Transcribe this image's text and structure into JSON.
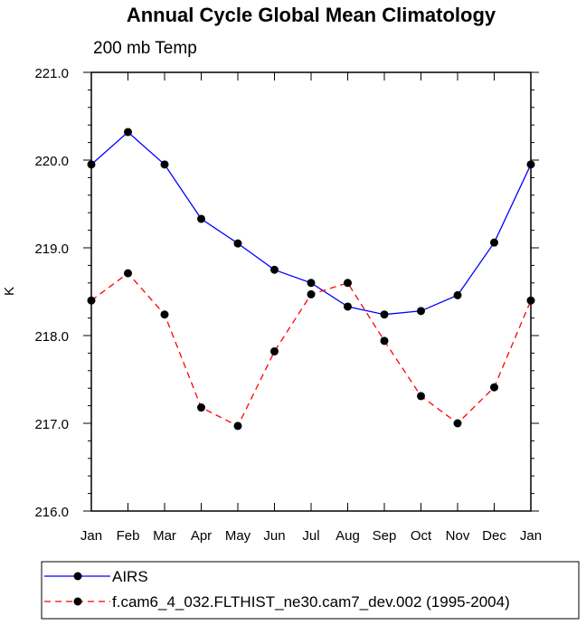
{
  "chart_data": {
    "type": "line",
    "title": "Annual Cycle Global Mean Climatology",
    "subtitle": "200 mb Temp",
    "xlabel": "",
    "ylabel": "K",
    "categories": [
      "Jan",
      "Feb",
      "Mar",
      "Apr",
      "May",
      "Jun",
      "Jul",
      "Aug",
      "Sep",
      "Oct",
      "Nov",
      "Dec",
      "Jan"
    ],
    "ylim": [
      216.0,
      221.0
    ],
    "yticks": [
      "216.0",
      "217.0",
      "218.0",
      "219.0",
      "220.0",
      "221.0"
    ],
    "grid": false,
    "legend_position": "bottom",
    "series": [
      {
        "name": "AIRS",
        "color": "#0000ff",
        "style": "solid",
        "values": [
          219.95,
          220.32,
          219.95,
          219.33,
          219.05,
          218.75,
          218.6,
          218.33,
          218.24,
          218.28,
          218.46,
          219.06,
          219.95
        ]
      },
      {
        "name": "f.cam6_4_032.FLTHIST_ne30.cam7_dev.002 (1995-2004)",
        "color": "#ff0000",
        "style": "dashed",
        "values": [
          218.4,
          218.71,
          218.24,
          217.18,
          216.97,
          217.82,
          218.47,
          218.6,
          217.94,
          217.31,
          217.0,
          217.41,
          218.4
        ]
      }
    ]
  }
}
